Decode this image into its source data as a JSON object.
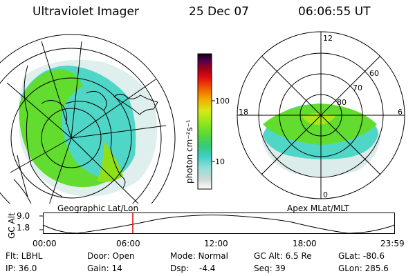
{
  "header": {
    "title": "Ultraviolet Imager",
    "date": "25 Dec 07",
    "time": "06:06:55 UT"
  },
  "colorbar": {
    "unit_label": "photon cm⁻²s⁻¹",
    "ticks": [
      "100",
      "10"
    ],
    "colors": [
      "#ffffff",
      "#cfd8d8",
      "#8fdfd5",
      "#3fd0c8",
      "#38c878",
      "#58d838",
      "#98e818",
      "#d8e818",
      "#f0b000",
      "#f06000",
      "#e01010",
      "#a00018",
      "#500050",
      "#100010"
    ]
  },
  "left_panel": {
    "caption": "Geographic Lat/Lon"
  },
  "right_panel": {
    "caption": "Apex MLat/MLT",
    "mlt_labels": {
      "top": "12",
      "left": "18",
      "right": "6",
      "bottom": "0"
    },
    "lat_labels": [
      "60",
      "70",
      "80"
    ]
  },
  "timeline": {
    "ylabel": "GC Alt",
    "yticks": [
      "9.0",
      "1.8"
    ],
    "xticks": [
      "00:00",
      "06:00",
      "12:00",
      "18:00",
      "23:59"
    ]
  },
  "info": {
    "row1": {
      "filter": "Flt: LBHL",
      "door": "Door: Open",
      "mode": "Mode: Normal",
      "gcalt": "GC Alt: 6.5 Re",
      "glat": "GLat: -80.6"
    },
    "row2": {
      "ip": "IP: 36.0",
      "gain": "Gain: 14",
      "dsp": "Dsp:",
      "dsp_value": "-4.4",
      "seq": "Seq: 39",
      "glon": "GLon: 285.6"
    }
  }
}
